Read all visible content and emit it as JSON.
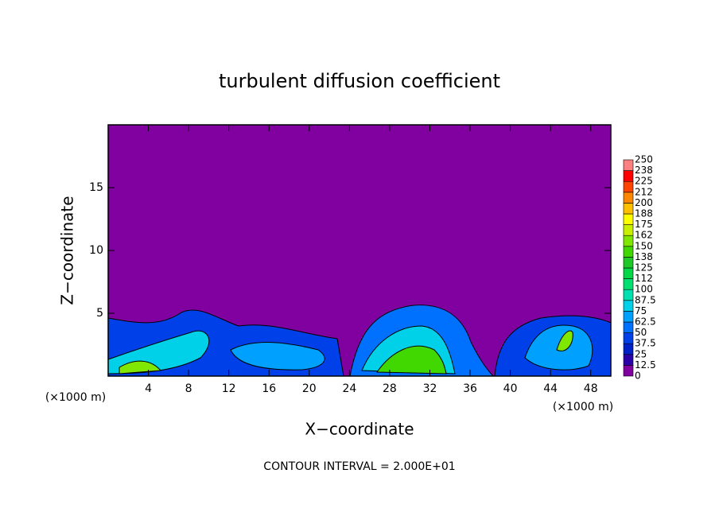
{
  "chart_data": {
    "type": "contour",
    "title": "turbulent diffusion coefficient",
    "x_label": "X−coordinate",
    "y_label": "Z−coordinate",
    "unit_label": "(×1000 m)",
    "note": "CONTOUR INTERVAL = 2.000E+01",
    "xlim": [
      0,
      50
    ],
    "xticks": [
      4,
      8,
      12,
      16,
      20,
      24,
      28,
      32,
      36,
      40,
      44,
      48
    ],
    "ylim": [
      0,
      20
    ],
    "yticks": [
      5,
      10,
      15
    ],
    "colorbar": {
      "levels": [
        0,
        12.5,
        25,
        37.5,
        50,
        62.5,
        75,
        87.5,
        100,
        112,
        125,
        138,
        150,
        162,
        175,
        188,
        200,
        212,
        225,
        238,
        250
      ],
      "colors": [
        "#8000a0",
        "#2a00a8",
        "#0020c8",
        "#0040e8",
        "#0070ff",
        "#00a0ff",
        "#00d0e8",
        "#00e0b0",
        "#00e070",
        "#00d848",
        "#20c828",
        "#40d800",
        "#80e800",
        "#c8f000",
        "#ffff00",
        "#ffc000",
        "#ff8800",
        "#ff4400",
        "#ff0000",
        "#ff8080"
      ]
    }
  }
}
